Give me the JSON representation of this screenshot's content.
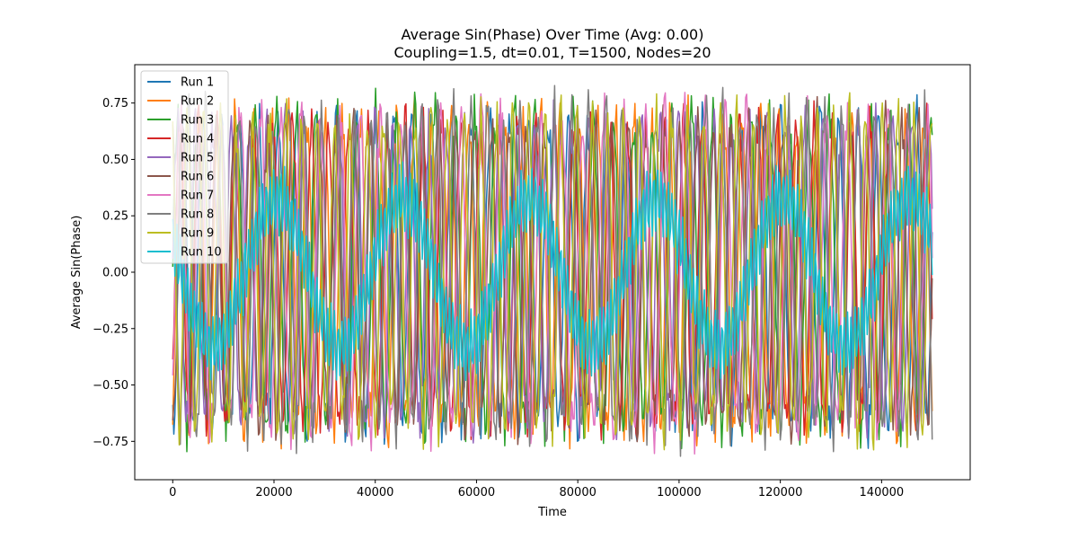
{
  "chart_data": {
    "type": "line",
    "title": "Average Sin(Phase) Over Time (Avg: 0.00)",
    "subtitle": "Coupling=1.5, dt=0.01, T=1500, Nodes=20",
    "xlabel": "Time",
    "ylabel": "Average Sin(Phase)",
    "xlim": [
      -7500,
      157500
    ],
    "ylim": [
      -0.92,
      0.92
    ],
    "xticks": [
      0,
      20000,
      40000,
      60000,
      80000,
      100000,
      120000,
      140000
    ],
    "xtick_labels": [
      "0",
      "20000",
      "40000",
      "60000",
      "80000",
      "100000",
      "120000",
      "140000"
    ],
    "yticks": [
      -0.75,
      -0.5,
      -0.25,
      0.0,
      0.25,
      0.5,
      0.75
    ],
    "ytick_labels": [
      "−0.75",
      "−0.50",
      "−0.25",
      "0.00",
      "0.25",
      "0.50",
      "0.75"
    ],
    "x_range": [
      0,
      150000
    ],
    "grid": false,
    "legend_position": "top-left",
    "series": [
      {
        "name": "Run 1",
        "color": "#1f77b4",
        "amplitude": 0.78,
        "period_approx": 3800
      },
      {
        "name": "Run 2",
        "color": "#ff7f0e",
        "amplitude": 0.78,
        "period_approx": 3600
      },
      {
        "name": "Run 3",
        "color": "#2ca02c",
        "amplitude": 0.8,
        "period_approx": 3900
      },
      {
        "name": "Run 4",
        "color": "#d62728",
        "amplitude": 0.76,
        "period_approx": 3700
      },
      {
        "name": "Run 5",
        "color": "#9467bd",
        "amplitude": 0.76,
        "period_approx": 3500
      },
      {
        "name": "Run 6",
        "color": "#8c564b",
        "amplitude": 0.76,
        "period_approx": 3400
      },
      {
        "name": "Run 7",
        "color": "#e377c2",
        "amplitude": 0.8,
        "period_approx": 4000
      },
      {
        "name": "Run 8",
        "color": "#7f7f7f",
        "amplitude": 0.82,
        "period_approx": 3300
      },
      {
        "name": "Run 9",
        "color": "#bcbd22",
        "amplitude": 0.79,
        "period_approx": 3200
      },
      {
        "name": "Run 10",
        "color": "#17becf",
        "amplitude": 0.66,
        "period_approx": 1500,
        "envelope_period_approx": 25000
      }
    ]
  }
}
